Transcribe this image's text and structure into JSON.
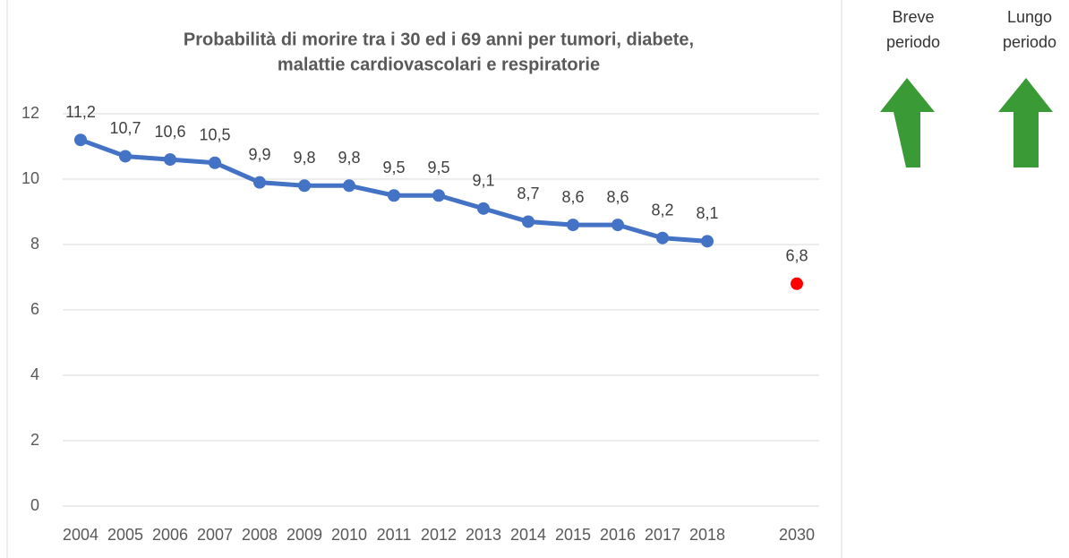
{
  "chart_data": {
    "type": "line",
    "title": [
      "Probabilità di morire tra i 30 ed i 69 anni per tumori, diabete,",
      "malattie cardiovascolari e respiratorie"
    ],
    "categories": [
      "2004",
      "2005",
      "2006",
      "2007",
      "2008",
      "2009",
      "2010",
      "2011",
      "2012",
      "2013",
      "2014",
      "2015",
      "2016",
      "2017",
      "2018",
      null,
      "2030"
    ],
    "series": [
      {
        "color": "#4472c4",
        "values": [
          11.2,
          10.7,
          10.6,
          10.5,
          9.9,
          9.8,
          9.8,
          9.5,
          9.5,
          9.1,
          8.7,
          8.6,
          8.6,
          8.2,
          8.1,
          null,
          null
        ],
        "value_labels": [
          "11,2",
          "10,7",
          "10,6",
          "10,5",
          "9,9",
          "9,8",
          "9,8",
          "9,5",
          "9,5",
          "9,1",
          "8,7",
          "8,6",
          "8,6",
          "8,2",
          "8,1",
          null,
          null
        ]
      },
      {
        "color": "#ff0000",
        "values": [
          null,
          null,
          null,
          null,
          null,
          null,
          null,
          null,
          null,
          null,
          null,
          null,
          null,
          null,
          null,
          null,
          6.8
        ],
        "value_labels": [
          null,
          null,
          null,
          null,
          null,
          null,
          null,
          null,
          null,
          null,
          null,
          null,
          null,
          null,
          null,
          null,
          "6,8"
        ]
      }
    ],
    "ylim": [
      0,
      12
    ],
    "yticks": [
      0,
      2,
      4,
      6,
      8,
      10,
      12
    ],
    "grid": true
  },
  "annotations": [
    [
      "Breve",
      "periodo"
    ],
    [
      "Lungo",
      "periodo"
    ]
  ]
}
